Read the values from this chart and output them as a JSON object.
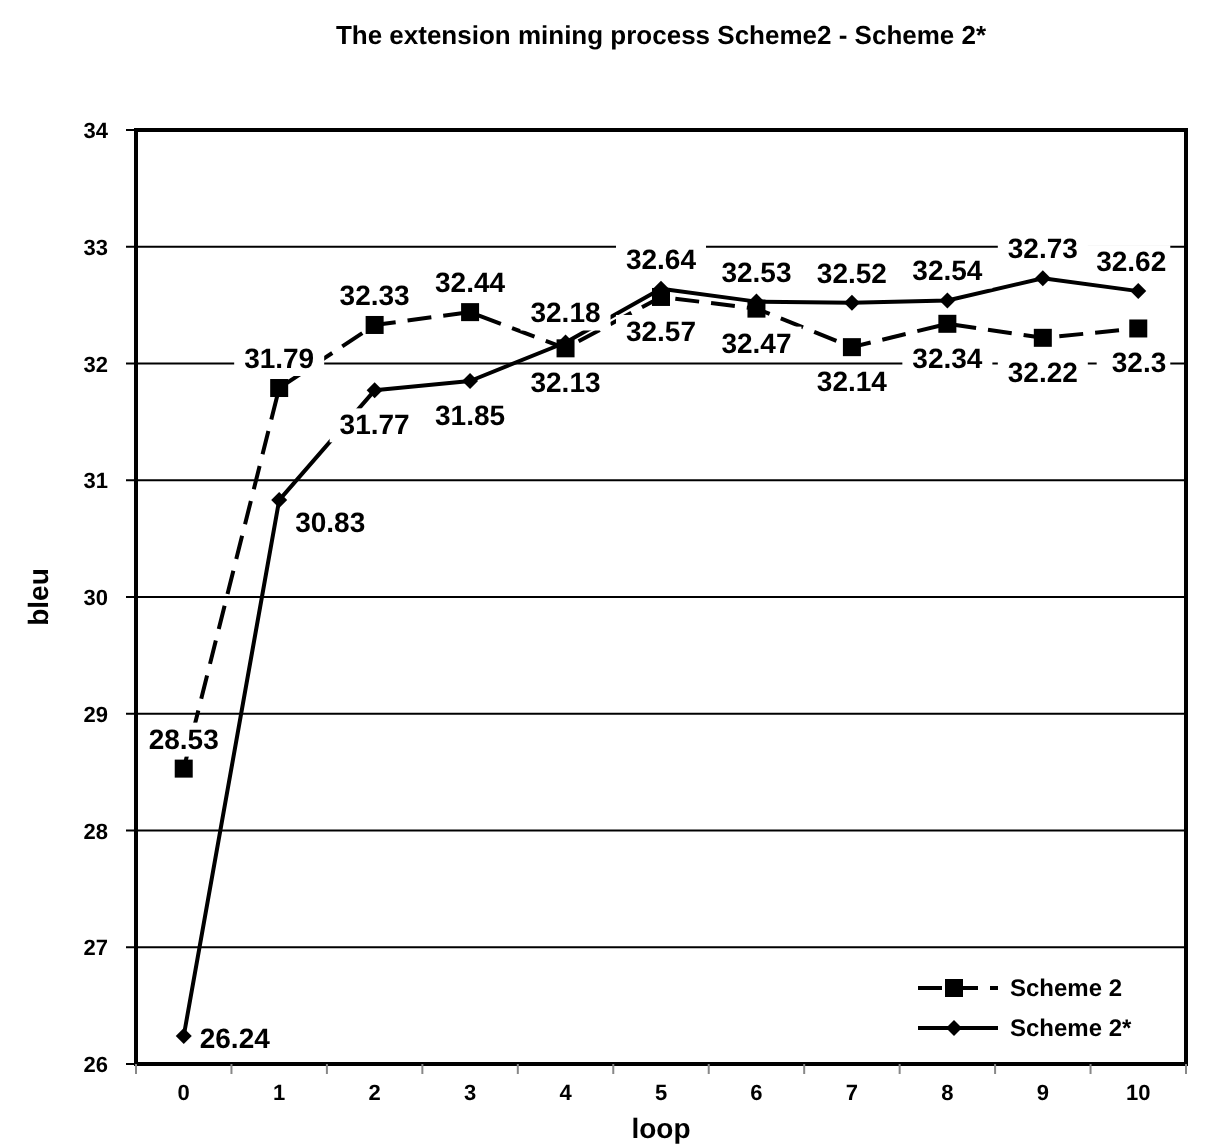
{
  "chart_data": {
    "type": "line",
    "title": "The extension mining process Scheme2 - Scheme 2*",
    "xlabel": "loop",
    "ylabel": "bleu",
    "categories": [
      "0",
      "1",
      "2",
      "3",
      "4",
      "5",
      "6",
      "7",
      "8",
      "9",
      "10"
    ],
    "series": [
      {
        "name": "Scheme 2",
        "color": "#000000",
        "marker": "square",
        "line_style": "dashed",
        "values": [
          28.53,
          31.79,
          32.33,
          32.44,
          32.13,
          32.57,
          32.47,
          32.14,
          32.34,
          32.22,
          32.3
        ]
      },
      {
        "name": "Scheme 2*",
        "color": "#000000",
        "marker": "diamond",
        "line_style": "solid",
        "values": [
          26.24,
          30.83,
          31.77,
          31.85,
          32.18,
          32.64,
          32.53,
          32.52,
          32.54,
          32.73,
          32.62
        ]
      }
    ],
    "ylim": [
      26,
      34
    ],
    "yticks": [
      26,
      27,
      28,
      29,
      30,
      31,
      32,
      33,
      34
    ],
    "grid": "y",
    "legend": "bottom right",
    "data_labels": true
  }
}
